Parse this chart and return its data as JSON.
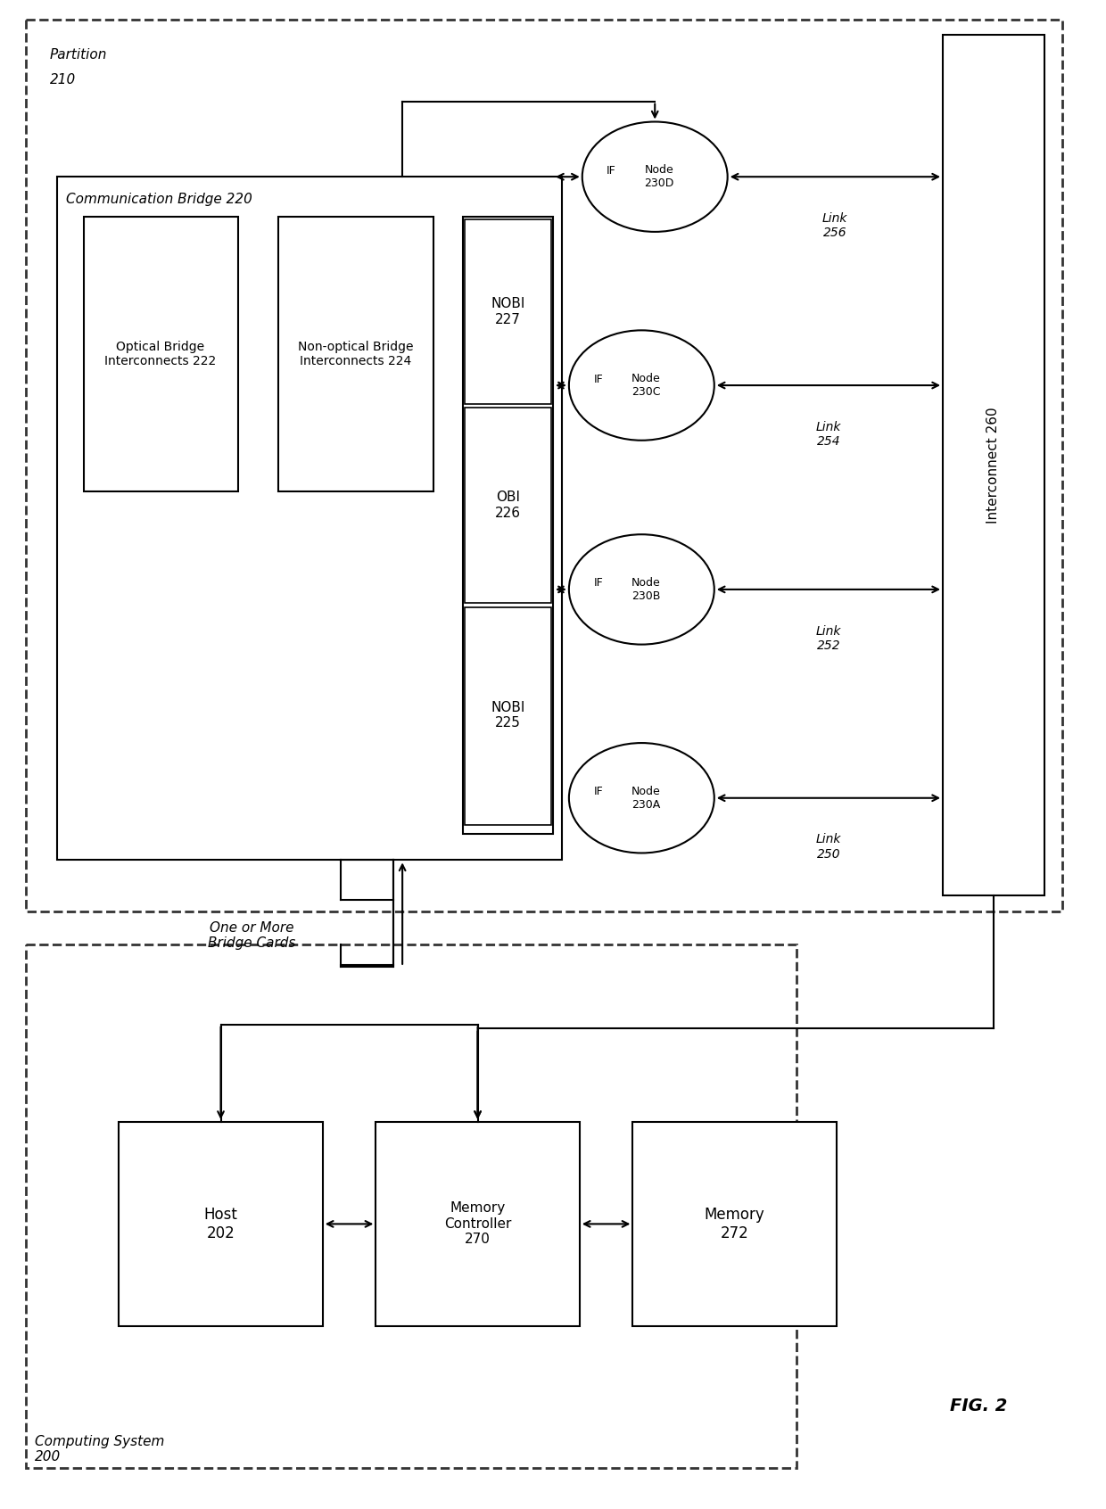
{
  "bg_color": "#ffffff",
  "line_color": "#000000",
  "fig_width": 12.4,
  "fig_height": 16.92,
  "title": "FIG. 2",
  "labels": {
    "partition": "Partition\n210",
    "computing_system": "Computing System\n200",
    "comm_bridge": "Communication Bridge 220",
    "optical_bridge": "Optical Bridge\nInterconnects 222",
    "non_optical_bridge": "Non-optical Bridge\nInterconnects 224",
    "nobi_225": "NOBI\n225",
    "obi_226": "OBI\n226",
    "nobi_227": "NOBI\n227",
    "node_230a": "Node\n230A",
    "node_230b": "Node\n230B",
    "node_230c": "Node\n230C",
    "node_230d": "Node\n230D",
    "interconnect": "Interconnect 260",
    "link_250": "Link\n250",
    "link_252": "Link\n252",
    "link_254": "Link\n254",
    "link_256": "Link\n256",
    "one_more_bridge": "One or More\nBridge Cards",
    "host": "Host\n202",
    "memory_controller": "Memory\nController\n270",
    "memory": "Memory\n272",
    "IF": "IF"
  }
}
